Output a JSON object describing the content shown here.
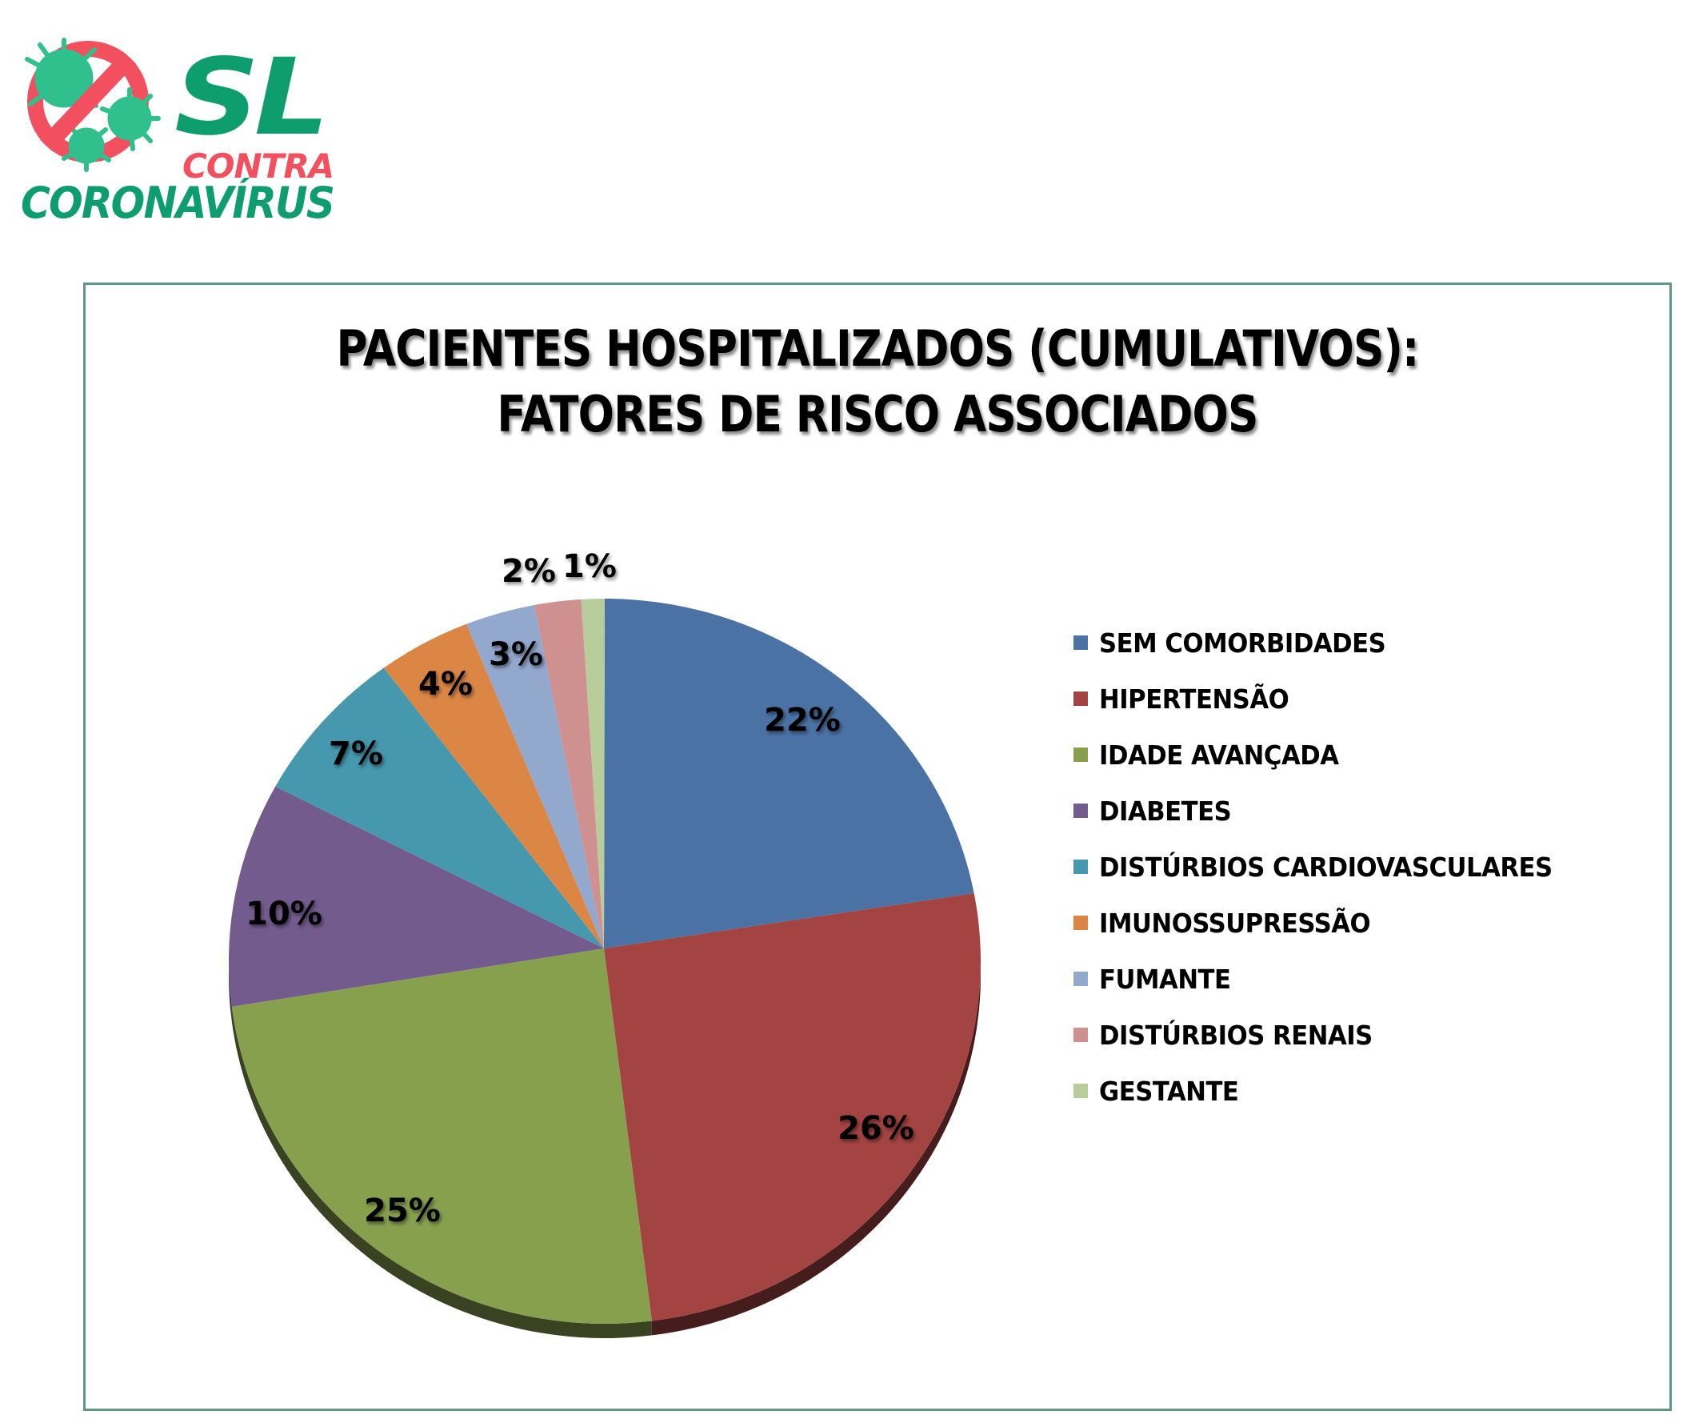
{
  "logo": {
    "line1": "SL",
    "line2": "CONTRA",
    "line3": "CORONAVÍRUS",
    "colors": {
      "green": "#0e9d6c",
      "virus": "#2fc08e",
      "red": "#f2505f"
    }
  },
  "chart": {
    "title_line1": "PACIENTES HOSPITALIZADOS (CUMULATIVOS):",
    "title_line2": "FATORES DE RISCO ASSOCIADOS",
    "frame_color": "#5e9782"
  },
  "legend": {
    "items": [
      {
        "label": "SEM COMORBIDADES",
        "color": "#4a72a4"
      },
      {
        "label": "HIPERTENSÃO",
        "color": "#a44442"
      },
      {
        "label": "IDADE AVANÇADA",
        "color": "#87a04e"
      },
      {
        "label": "DIABETES",
        "color": "#745b8e"
      },
      {
        "label": "DISTÚRBIOS CARDIOVASCULARES",
        "color": "#4598ae"
      },
      {
        "label": "IMUNOSSUPRESSÃO",
        "color": "#db8644"
      },
      {
        "label": "FUMANTE",
        "color": "#92a8cd"
      },
      {
        "label": "DISTÚRBIOS RENAIS",
        "color": "#cf9190"
      },
      {
        "label": "GESTANTE",
        "color": "#b8cd99"
      }
    ]
  },
  "chart_data": {
    "type": "pie",
    "title": "PACIENTES HOSPITALIZADOS (CUMULATIVOS): FATORES DE RISCO ASSOCIADOS",
    "categories": [
      "SEM COMORBIDADES",
      "HIPERTENSÃO",
      "IDADE AVANÇADA",
      "DIABETES",
      "DISTÚRBIOS CARDIOVASCULARES",
      "IMUNOSSUPRESSÃO",
      "FUMANTE",
      "DISTÚRBIOS RENAIS",
      "GESTANTE"
    ],
    "values": [
      22,
      26,
      25,
      10,
      7,
      4,
      3,
      2,
      1
    ],
    "labels": [
      "22%",
      "26%",
      "25%",
      "10%",
      "7%",
      "4%",
      "3%",
      "2%",
      "1%"
    ],
    "colors": [
      "#4a72a4",
      "#a44442",
      "#87a04e",
      "#745b8e",
      "#4598ae",
      "#db8644",
      "#92a8cd",
      "#cf9190",
      "#b8cd99"
    ],
    "start_angle": "top (12 o'clock), clockwise",
    "legend_position": "right",
    "style": "3D tilted pie with data labels"
  }
}
